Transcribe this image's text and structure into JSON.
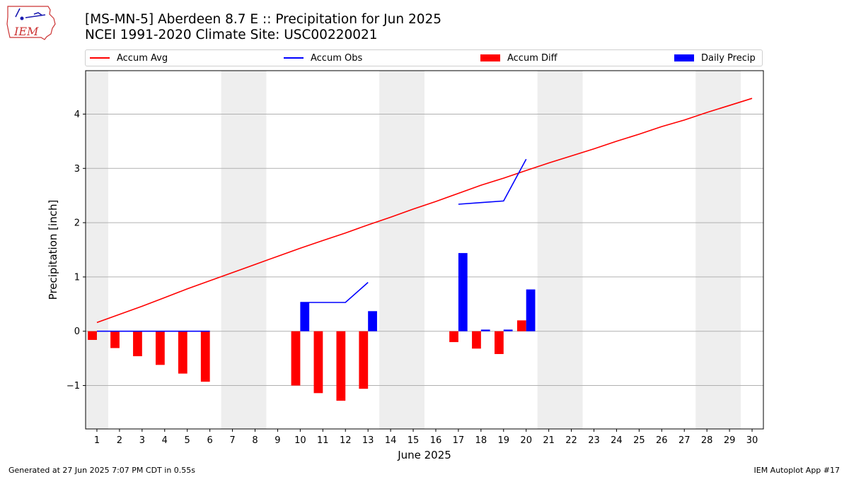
{
  "logo": {
    "text": "IEM"
  },
  "header": {
    "title_line1": "[MS-MN-5] Aberdeen 8.7 E :: Precipitation for Jun 2025",
    "title_line2": "NCEI 1991-2020 Climate Site: USC00220021"
  },
  "legend": [
    {
      "label": "Accum Avg",
      "kind": "line",
      "color": "#ff0000"
    },
    {
      "label": "Accum Obs",
      "kind": "line",
      "color": "#0000ff"
    },
    {
      "label": "Accum Diff",
      "kind": "bar",
      "color": "#ff0000"
    },
    {
      "label": "Daily Precip",
      "kind": "bar",
      "color": "#0000ff"
    }
  ],
  "chart_data": {
    "type": "bar",
    "xlabel": "June 2025",
    "ylabel": "Precipitation [inch]",
    "xlim": [
      0.5,
      30.5
    ],
    "ylim": [
      -1.8,
      4.8
    ],
    "yticks": [
      -1,
      0,
      1,
      2,
      3,
      4
    ],
    "ytick_labels": [
      "−1",
      "0",
      "1",
      "2",
      "3",
      "4"
    ],
    "grid": "y",
    "weekend_shading": [
      [
        0.5,
        1.5
      ],
      [
        6.5,
        8.5
      ],
      [
        13.5,
        15.5
      ],
      [
        20.5,
        22.5
      ],
      [
        27.5,
        29.5
      ]
    ],
    "days": [
      1,
      2,
      3,
      4,
      5,
      6,
      7,
      8,
      9,
      10,
      11,
      12,
      13,
      14,
      15,
      16,
      17,
      18,
      19,
      20,
      21,
      22,
      23,
      24,
      25,
      26,
      27,
      28,
      29,
      30
    ],
    "series": [
      {
        "name": "Accum Avg",
        "kind": "line",
        "color": "#ff0000",
        "points": [
          [
            1,
            0.16
          ],
          [
            2,
            0.31
          ],
          [
            3,
            0.46
          ],
          [
            4,
            0.62
          ],
          [
            5,
            0.78
          ],
          [
            6,
            0.93
          ],
          [
            7,
            1.08
          ],
          [
            8,
            1.23
          ],
          [
            9,
            1.38
          ],
          [
            10,
            1.53
          ],
          [
            11,
            1.67
          ],
          [
            12,
            1.81
          ],
          [
            13,
            1.96
          ],
          [
            14,
            2.1
          ],
          [
            15,
            2.25
          ],
          [
            16,
            2.39
          ],
          [
            17,
            2.54
          ],
          [
            18,
            2.69
          ],
          [
            19,
            2.82
          ],
          [
            20,
            2.96
          ],
          [
            21,
            3.1
          ],
          [
            22,
            3.23
          ],
          [
            23,
            3.36
          ],
          [
            24,
            3.5
          ],
          [
            25,
            3.63
          ],
          [
            26,
            3.77
          ],
          [
            27,
            3.89
          ],
          [
            28,
            4.03
          ],
          [
            29,
            4.16
          ],
          [
            30,
            4.29
          ]
        ]
      },
      {
        "name": "Accum Obs",
        "kind": "line",
        "color": "#0000ff",
        "segments": [
          [
            [
              1,
              0
            ],
            [
              2,
              0
            ],
            [
              3,
              0
            ],
            [
              4,
              0
            ],
            [
              5,
              0
            ],
            [
              6,
              0
            ]
          ],
          [
            [
              10,
              0.53
            ],
            [
              11,
              0.53
            ],
            [
              12,
              0.53
            ],
            [
              13,
              0.9
            ]
          ],
          [
            [
              17,
              2.34
            ],
            [
              18,
              2.37
            ],
            [
              19,
              2.4
            ],
            [
              20,
              3.17
            ]
          ]
        ]
      },
      {
        "name": "Accum Diff",
        "kind": "bar",
        "color": "#ff0000",
        "offset": -0.2,
        "points": [
          [
            1,
            -0.16
          ],
          [
            2,
            -0.31
          ],
          [
            3,
            -0.46
          ],
          [
            4,
            -0.62
          ],
          [
            5,
            -0.78
          ],
          [
            6,
            -0.93
          ],
          [
            10,
            -1.0
          ],
          [
            11,
            -1.14
          ],
          [
            12,
            -1.28
          ],
          [
            13,
            -1.06
          ],
          [
            17,
            -0.2
          ],
          [
            18,
            -0.32
          ],
          [
            19,
            -0.42
          ],
          [
            20,
            0.2
          ]
        ]
      },
      {
        "name": "Daily Precip",
        "kind": "bar",
        "color": "#0000ff",
        "offset": 0.2,
        "points": [
          [
            1,
            0
          ],
          [
            2,
            0
          ],
          [
            3,
            0
          ],
          [
            4,
            0
          ],
          [
            5,
            0
          ],
          [
            6,
            0
          ],
          [
            10,
            0.53
          ],
          [
            11,
            0
          ],
          [
            12,
            0
          ],
          [
            13,
            0.37
          ],
          [
            17,
            1.44
          ],
          [
            18,
            0.03
          ],
          [
            19,
            0.03
          ],
          [
            20,
            0.77
          ]
        ]
      }
    ]
  },
  "footer": {
    "left": "Generated at 27 Jun 2025 7:07 PM CDT in 0.55s",
    "right": "IEM Autoplot App #17"
  }
}
